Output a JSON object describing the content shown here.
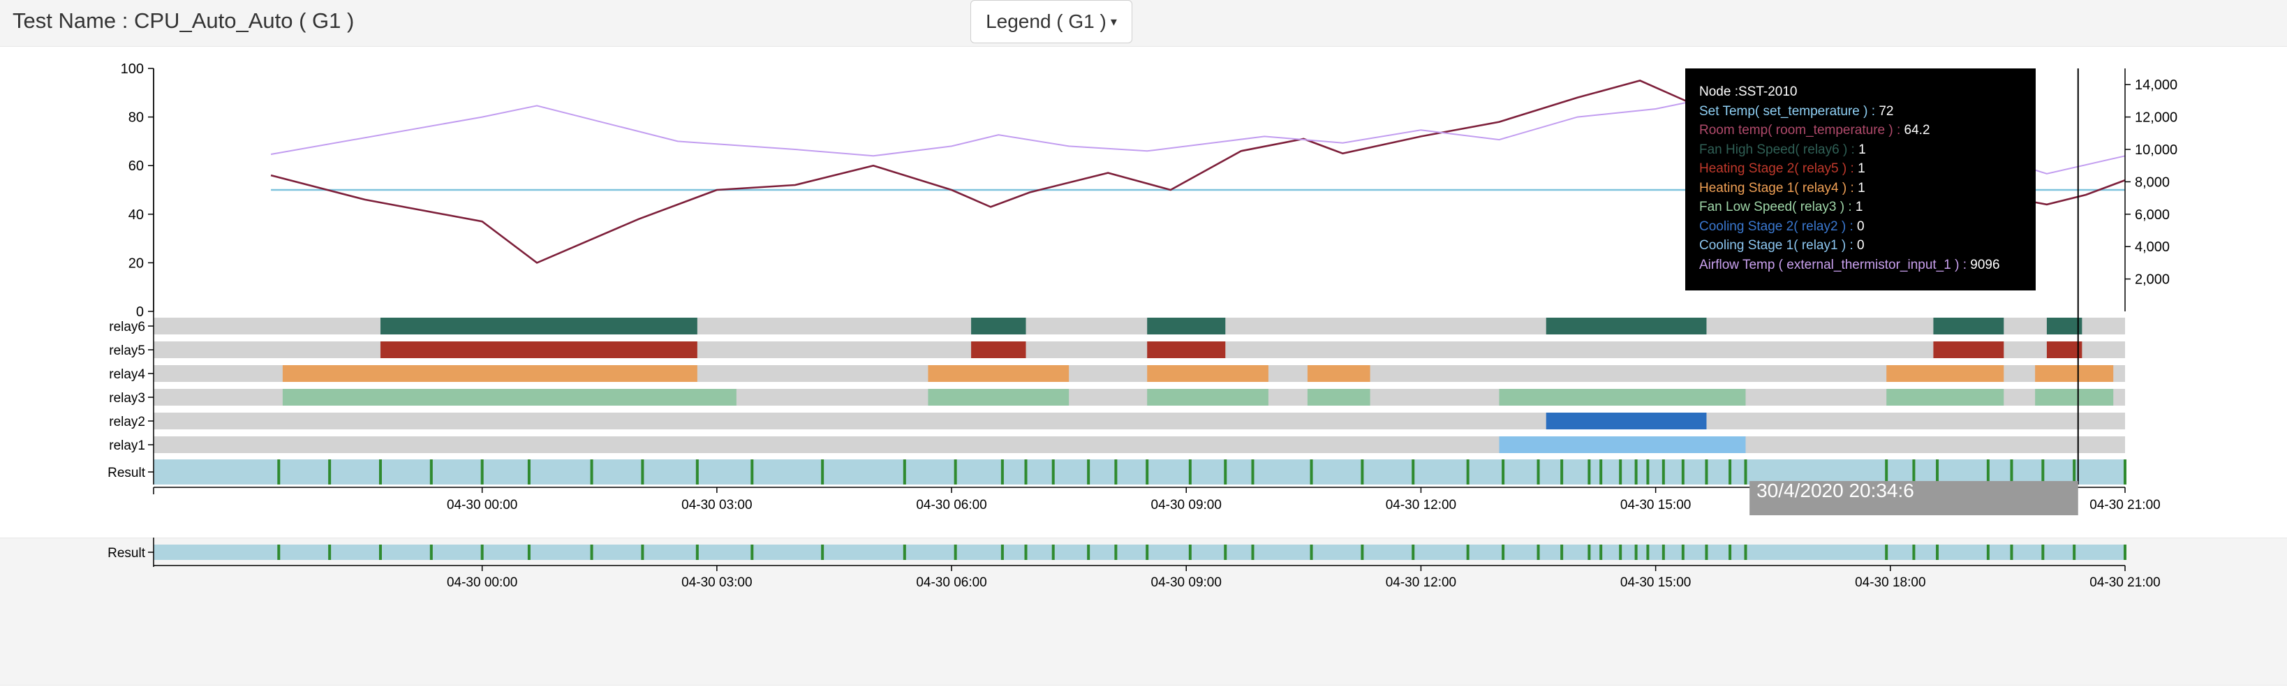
{
  "header": {
    "title": "Test Name : CPU_Auto_Auto ( G1 )"
  },
  "legend_button": {
    "label": "Legend ( G1 )"
  },
  "tooltip": {
    "node": "Node :SST-2010",
    "rows": [
      {
        "label": "Set Temp( set_temperature ) :",
        "value": "72",
        "color": "#8fd0f5"
      },
      {
        "label": "Room temp( room_temperature ) :",
        "value": "64.2",
        "color": "#b04a6b"
      },
      {
        "label": "Fan High Speed( relay6 ) :",
        "value": "1",
        "color": "#2f5f55"
      },
      {
        "label": "Heating Stage 2( relay5 ) :",
        "value": "1",
        "color": "#c0392b"
      },
      {
        "label": "Heating Stage 1( relay4 ) :",
        "value": "1",
        "color": "#f0a055"
      },
      {
        "label": "Fan Low Speed( relay3 ) :",
        "value": "1",
        "color": "#9fd6a8"
      },
      {
        "label": "Cooling Stage 2( relay2 ) :",
        "value": "0",
        "color": "#3a78d0"
      },
      {
        "label": "Cooling Stage 1( relay1 ) :",
        "value": "0",
        "color": "#8cc6f0"
      },
      {
        "label": "Airflow Temp ( external_thermistor_input_1 ) :",
        "value": "9096",
        "color": "#c9a0ee"
      }
    ]
  },
  "chart_data": {
    "type": "line",
    "x_unit": "hours since 04-30 00:00",
    "xlim": [
      -4.2,
      21.0
    ],
    "x_ticks": [
      {
        "value": 0,
        "label": "04-30 00:00"
      },
      {
        "value": 3,
        "label": "04-30 03:00"
      },
      {
        "value": 6,
        "label": "04-30 06:00"
      },
      {
        "value": 9,
        "label": "04-30 09:00"
      },
      {
        "value": 12,
        "label": "04-30 12:00"
      },
      {
        "value": 15,
        "label": "04-30 15:00"
      },
      {
        "value": 18,
        "label": "04-30 18:00"
      },
      {
        "value": 21,
        "label": "04-30 21:00"
      }
    ],
    "left_axis": {
      "ylim": [
        0,
        100
      ],
      "ticks": [
        "0",
        "20",
        "40",
        "60",
        "80",
        "100"
      ]
    },
    "right_axis": {
      "ylim": [
        0,
        15000
      ],
      "ticks": [
        "2,000",
        "4,000",
        "6,000",
        "8,000",
        "10,000",
        "12,000",
        "14,000"
      ]
    },
    "series": [
      {
        "name": "Set Temp( set_temperature )",
        "axis": "left",
        "color": "#7ec3dc",
        "points": [
          [
            -2.7,
            50
          ],
          [
            21.0,
            50
          ]
        ]
      },
      {
        "name": "Room temp( room_temperature )",
        "axis": "left",
        "color": "#7d1f3a",
        "points": [
          [
            -2.7,
            56
          ],
          [
            -1.5,
            46
          ],
          [
            0,
            37
          ],
          [
            0.7,
            20
          ],
          [
            2.0,
            38
          ],
          [
            3.0,
            50
          ],
          [
            4.0,
            52
          ],
          [
            5.0,
            60
          ],
          [
            6.0,
            50
          ],
          [
            6.5,
            43
          ],
          [
            7.0,
            49
          ],
          [
            8.0,
            57
          ],
          [
            8.8,
            50
          ],
          [
            9.7,
            66
          ],
          [
            10.5,
            71
          ],
          [
            11.0,
            65
          ],
          [
            12.0,
            72
          ],
          [
            13.0,
            78
          ],
          [
            14.0,
            88
          ],
          [
            14.8,
            95
          ],
          [
            15.5,
            85
          ],
          [
            16.0,
            80
          ],
          [
            17.0,
            77
          ],
          [
            18.0,
            73
          ],
          [
            18.5,
            55
          ],
          [
            19.0,
            48
          ],
          [
            19.5,
            47
          ],
          [
            20.0,
            44
          ],
          [
            20.5,
            48
          ],
          [
            21.0,
            54
          ]
        ]
      },
      {
        "name": "Airflow Temp ( external_thermistor_input_1 )",
        "axis": "right",
        "color": "#c29df0",
        "points": [
          [
            -2.7,
            9700
          ],
          [
            0,
            12000
          ],
          [
            0.7,
            12700
          ],
          [
            2.5,
            10500
          ],
          [
            4.0,
            10000
          ],
          [
            5.0,
            9600
          ],
          [
            6.0,
            10200
          ],
          [
            6.6,
            10900
          ],
          [
            7.5,
            10200
          ],
          [
            8.5,
            9900
          ],
          [
            9.5,
            10500
          ],
          [
            10.0,
            10800
          ],
          [
            11.0,
            10400
          ],
          [
            12.0,
            11200
          ],
          [
            13.0,
            10600
          ],
          [
            14.0,
            12000
          ],
          [
            15.0,
            12500
          ],
          [
            16.0,
            13500
          ],
          [
            17.0,
            11500
          ],
          [
            18.0,
            11000
          ],
          [
            19.0,
            10000
          ],
          [
            20.0,
            8500
          ],
          [
            21.0,
            9600
          ]
        ]
      }
    ],
    "gantt": {
      "rows": [
        {
          "name": "relay6",
          "color": "#2e6b5c",
          "intervals": [
            [
              -1.3,
              2.75
            ],
            [
              6.25,
              6.95
            ],
            [
              8.5,
              9.5
            ],
            [
              13.6,
              15.65
            ],
            [
              18.55,
              19.45
            ],
            [
              20.0,
              20.45
            ]
          ]
        },
        {
          "name": "relay5",
          "color": "#a93226",
          "intervals": [
            [
              -1.3,
              2.75
            ],
            [
              6.25,
              6.95
            ],
            [
              8.5,
              9.5
            ],
            [
              18.55,
              19.45
            ],
            [
              20.0,
              20.45
            ]
          ]
        },
        {
          "name": "relay4",
          "color": "#e8a05c",
          "intervals": [
            [
              -2.55,
              2.75
            ],
            [
              5.7,
              7.5
            ],
            [
              8.5,
              10.05
            ],
            [
              10.55,
              11.35
            ],
            [
              17.95,
              19.45
            ],
            [
              19.85,
              20.85
            ]
          ]
        },
        {
          "name": "relay3",
          "color": "#93c6a4",
          "intervals": [
            [
              -2.55,
              3.25
            ],
            [
              5.7,
              7.5
            ],
            [
              8.5,
              10.05
            ],
            [
              10.55,
              11.35
            ],
            [
              13.0,
              16.15
            ],
            [
              17.95,
              19.45
            ],
            [
              19.85,
              20.85
            ]
          ]
        },
        {
          "name": "relay2",
          "color": "#2a6ebf",
          "intervals": [
            [
              13.6,
              15.65
            ]
          ]
        },
        {
          "name": "relay1",
          "color": "#86c1ea",
          "intervals": [
            [
              13.0,
              16.15
            ]
          ]
        }
      ],
      "result_row": {
        "name": "Result",
        "color": "#aed4e0",
        "marker_color": "#2f8a2f",
        "markers": [
          -2.6,
          -1.95,
          -1.3,
          -0.65,
          0,
          0.6,
          1.4,
          2.05,
          2.75,
          3.45,
          4.35,
          5.4,
          6.05,
          6.65,
          6.95,
          7.3,
          7.75,
          8.1,
          8.5,
          9.05,
          9.5,
          9.85,
          10.6,
          11.25,
          11.9,
          12.6,
          13.05,
          13.5,
          13.8,
          14.15,
          14.3,
          14.55,
          14.75,
          14.9,
          15.1,
          15.35,
          15.65,
          15.95,
          16.15,
          17.95,
          18.3,
          18.6,
          19.25,
          19.55,
          19.95,
          20.35,
          21.0
        ]
      }
    },
    "overview": {
      "label": "Result",
      "color": "#aed4e0",
      "marker_color": "#2f8a2f",
      "markers": [
        -2.6,
        -1.95,
        -1.3,
        -0.65,
        0,
        0.6,
        1.4,
        2.05,
        2.75,
        3.45,
        4.35,
        5.4,
        6.05,
        6.65,
        6.95,
        7.3,
        7.75,
        8.1,
        8.5,
        9.05,
        9.5,
        9.85,
        10.6,
        11.25,
        11.9,
        12.6,
        13.05,
        13.5,
        13.8,
        14.15,
        14.3,
        14.55,
        14.75,
        14.9,
        15.1,
        15.35,
        15.65,
        15.95,
        16.15,
        17.95,
        18.3,
        18.6,
        19.25,
        19.55,
        19.95,
        20.35,
        21.0
      ]
    },
    "crosshair": {
      "x": 20.4,
      "label": "30/4/2020 20:34:6"
    }
  }
}
